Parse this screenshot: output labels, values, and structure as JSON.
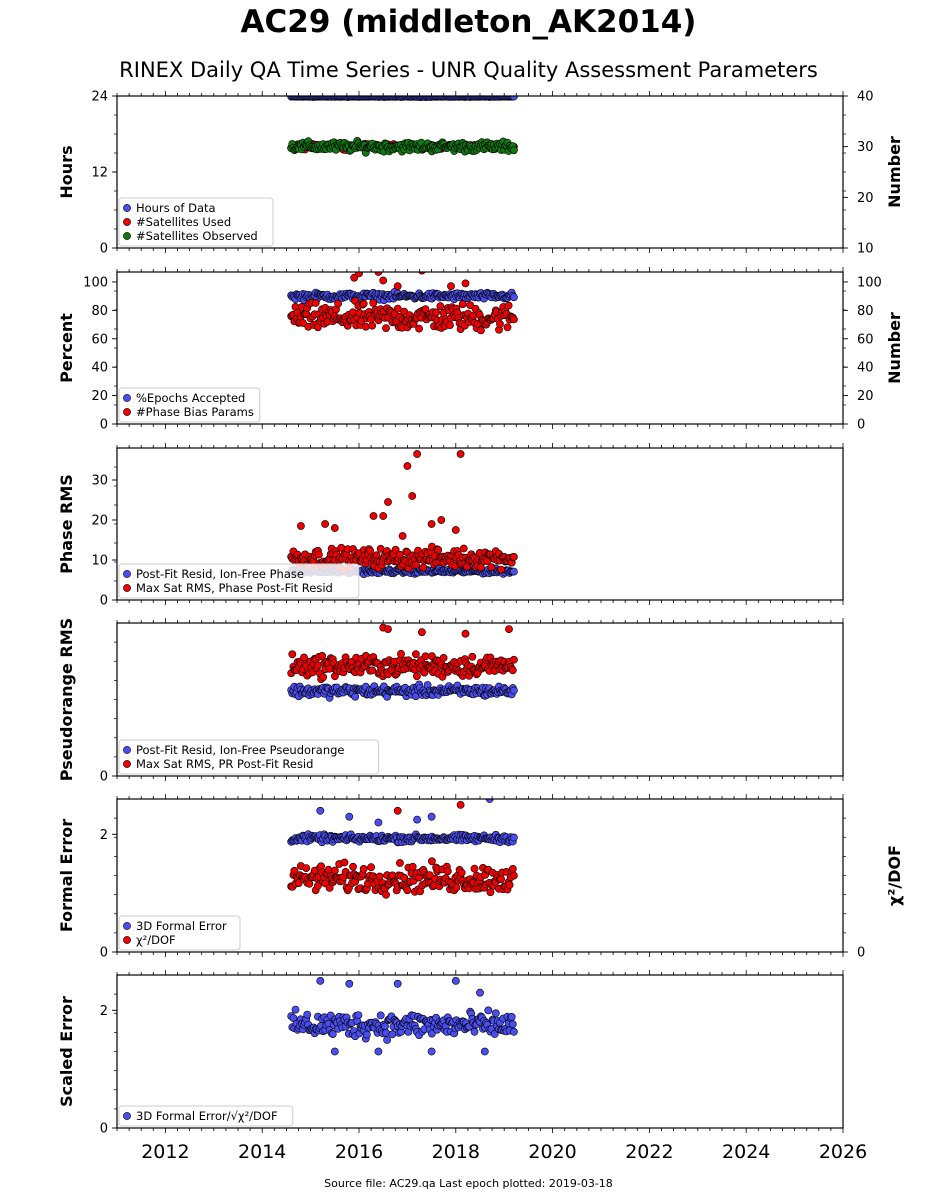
{
  "header": {
    "title": "AC29 (middleton_AK2014)",
    "subtitle": "RINEX Daily QA Time Series - UNR Quality Assessment Parameters"
  },
  "footer": {
    "text": "Source file: AC29.qa Last epoch plotted: 2019-03-18"
  },
  "colors": {
    "blue": "#4a4ef0",
    "red": "#ee0000",
    "green": "#0f7a0f",
    "edge": "#000000"
  },
  "chart_data": {
    "type": "scatter",
    "grid": false,
    "x_axis": {
      "range": [
        2011.0,
        2026.0
      ],
      "ticks": [
        2012,
        2014,
        2016,
        2018,
        2020,
        2022,
        2024,
        2026
      ]
    },
    "panels": [
      {
        "id": "hours",
        "ylabel": "Hours",
        "ylim": [
          0,
          24
        ],
        "yticks": [
          "0",
          "12",
          "24"
        ],
        "yticks_values": [
          0,
          12,
          24
        ],
        "right_axis": {
          "ylabel": "Number",
          "ylim": [
            10,
            40
          ],
          "yticks": [
            "10",
            "20",
            "30",
            "40"
          ],
          "yticks_values": [
            10,
            20,
            30,
            40
          ]
        },
        "legend": [
          "Hours of Data",
          "#Satellites Used",
          "#Satellites Observed"
        ],
        "legend_colors": [
          "blue",
          "red",
          "green"
        ],
        "legend_position": "lower-left",
        "series": [
          {
            "name": "Hours of Data",
            "color": "blue",
            "axis": "left",
            "x_range": [
              2014.6,
              2019.2
            ],
            "y_base": 23.9,
            "y_spread": 0.05
          },
          {
            "name": "#Satellites Used",
            "color": "red",
            "axis": "right",
            "x_range": [
              2014.6,
              2019.2
            ],
            "y_base": 30.0,
            "y_spread": 0.4
          },
          {
            "name": "#Satellites Observed",
            "color": "green",
            "axis": "right",
            "x_range": [
              2014.6,
              2019.2
            ],
            "y_base": 30.0,
            "y_spread": 0.8
          }
        ]
      },
      {
        "id": "percent",
        "ylabel": "Percent",
        "ylim": [
          0,
          107
        ],
        "yticks": [
          "0",
          "20",
          "40",
          "60",
          "80",
          "100"
        ],
        "yticks_values": [
          0,
          20,
          40,
          60,
          80,
          100
        ],
        "right_axis": {
          "ylabel": "Number",
          "ylim": [
            0,
            107
          ],
          "yticks": [
            "0",
            "20",
            "40",
            "60",
            "80",
            "100"
          ],
          "yticks_values": [
            0,
            20,
            40,
            60,
            80,
            100
          ]
        },
        "legend": [
          "%Epochs Accepted",
          "#Phase Bias Params"
        ],
        "legend_colors": [
          "blue",
          "red"
        ],
        "legend_position": "lower-left",
        "series": [
          {
            "name": "%Epochs Accepted",
            "color": "blue",
            "axis": "left",
            "x_range": [
              2014.6,
              2019.2
            ],
            "y_base": 90,
            "y_spread": 2.0
          },
          {
            "name": "#Phase Bias Params",
            "color": "red",
            "axis": "left",
            "x_range": [
              2014.6,
              2019.2
            ],
            "y_base": 75,
            "y_spread": 8
          }
        ],
        "outliers": [
          [
            2015.9,
            103
          ],
          [
            2016.0,
            106
          ],
          [
            2016.5,
            101
          ],
          [
            2016.4,
            107
          ],
          [
            2017.3,
            108
          ],
          [
            2018.2,
            99
          ],
          [
            2016.8,
            97
          ],
          [
            2017.9,
            97
          ]
        ]
      },
      {
        "id": "phase",
        "ylabel": "Phase RMS",
        "ylim": [
          0,
          38
        ],
        "yticks": [
          "0",
          "10",
          "20",
          "30"
        ],
        "yticks_values": [
          0,
          10,
          20,
          30
        ],
        "legend": [
          "Post-Fit Resid, Ion-Free Phase",
          "Max Sat RMS, Phase Post-Fit Resid"
        ],
        "legend_colors": [
          "blue",
          "red"
        ],
        "legend_position": "lower-left",
        "series": [
          {
            "name": "Post-Fit Resid, Ion-Free Phase",
            "color": "blue",
            "axis": "left",
            "x_range": [
              2014.6,
              2019.2
            ],
            "y_base": 7.2,
            "y_spread": 0.5
          },
          {
            "name": "Max Sat RMS, Phase Post-Fit Resid",
            "color": "red",
            "axis": "left",
            "x_range": [
              2014.6,
              2019.2
            ],
            "y_base": 10.5,
            "y_spread": 2.0
          }
        ],
        "outliers": [
          [
            2014.8,
            18.5
          ],
          [
            2015.3,
            19
          ],
          [
            2015.5,
            18
          ],
          [
            2016.3,
            21
          ],
          [
            2016.6,
            24.5
          ],
          [
            2016.5,
            21
          ],
          [
            2017.0,
            33.5
          ],
          [
            2017.1,
            26
          ],
          [
            2017.2,
            36.5
          ],
          [
            2017.5,
            19
          ],
          [
            2017.7,
            20
          ],
          [
            2018.0,
            17.5
          ],
          [
            2018.1,
            36.5
          ],
          [
            2016.9,
            16
          ]
        ]
      },
      {
        "id": "pseudorange",
        "ylabel": "Pseudorange RMS",
        "ylim": [
          0,
          1.0
        ],
        "yticks": [
          "0"
        ],
        "yticks_values": [
          0
        ],
        "legend": [
          "Post-Fit Resid, Ion-Free Pseudorange",
          "Max Sat RMS, PR Post-Fit Resid"
        ],
        "legend_colors": [
          "blue",
          "red"
        ],
        "legend_position": "lower-left",
        "series": [
          {
            "name": "Post-Fit Resid, Ion-Free Pseudorange",
            "color": "blue",
            "axis": "left",
            "x_range": [
              2014.6,
              2019.2
            ],
            "y_base": 0.555,
            "y_spread": 0.03
          },
          {
            "name": "Max Sat RMS, PR Post-Fit Resid",
            "color": "red",
            "axis": "left",
            "x_range": [
              2014.6,
              2019.2
            ],
            "y_base": 0.72,
            "y_spread": 0.06
          }
        ],
        "outliers": [
          [
            2016.5,
            0.97
          ],
          [
            2016.6,
            0.96
          ],
          [
            2017.3,
            0.94
          ],
          [
            2018.2,
            0.93
          ],
          [
            2019.1,
            0.96
          ]
        ]
      },
      {
        "id": "formal",
        "ylabel": "Formal Error",
        "ylim": [
          0,
          2.6
        ],
        "yticks": [
          "0",
          "2"
        ],
        "yticks_values": [
          0,
          2
        ],
        "right_axis": {
          "ylabel": "χ²/DOF",
          "ylim": [
            0,
            2.6
          ],
          "yticks": [
            "0"
          ],
          "yticks_values": [
            0
          ]
        },
        "legend": [
          "3D Formal Error",
          "χ²/DOF"
        ],
        "legend_colors": [
          "blue",
          "red"
        ],
        "legend_position": "lower-left",
        "series": [
          {
            "name": "3D Formal Error",
            "color": "blue",
            "axis": "left",
            "x_range": [
              2014.6,
              2019.2
            ],
            "y_base": 1.93,
            "y_spread": 0.05
          },
          {
            "name": "χ²/DOF",
            "color": "red",
            "axis": "right",
            "x_range": [
              2014.6,
              2019.2
            ],
            "y_base": 1.25,
            "y_spread": 0.2
          }
        ],
        "outliers": [
          [
            2015.2,
            2.4
          ],
          [
            2015.8,
            2.3
          ],
          [
            2016.4,
            2.2
          ],
          [
            2017.5,
            2.3
          ],
          [
            2018.7,
            2.6
          ],
          [
            2016.8,
            2.4
          ],
          [
            2017.2,
            2.25
          ],
          [
            2018.1,
            2.5
          ]
        ]
      },
      {
        "id": "scaled",
        "ylabel": "Scaled Error",
        "ylim": [
          0,
          2.6
        ],
        "yticks": [
          "0",
          "2"
        ],
        "yticks_values": [
          0,
          2
        ],
        "legend": [
          "3D Formal Error/√χ²/DOF"
        ],
        "legend_colors": [
          "blue"
        ],
        "legend_position": "lower-left",
        "series": [
          {
            "name": "3D Formal Error/√χ²/DOF",
            "color": "blue",
            "axis": "left",
            "x_range": [
              2014.6,
              2019.2
            ],
            "y_base": 1.75,
            "y_spread": 0.18
          }
        ],
        "outliers": [
          [
            2015.2,
            2.5
          ],
          [
            2015.8,
            2.45
          ],
          [
            2016.8,
            2.45
          ],
          [
            2018.0,
            2.5
          ],
          [
            2018.5,
            2.3
          ],
          [
            2015.5,
            1.3
          ],
          [
            2016.4,
            1.3
          ],
          [
            2017.5,
            1.3
          ],
          [
            2018.6,
            1.3
          ]
        ]
      }
    ]
  }
}
